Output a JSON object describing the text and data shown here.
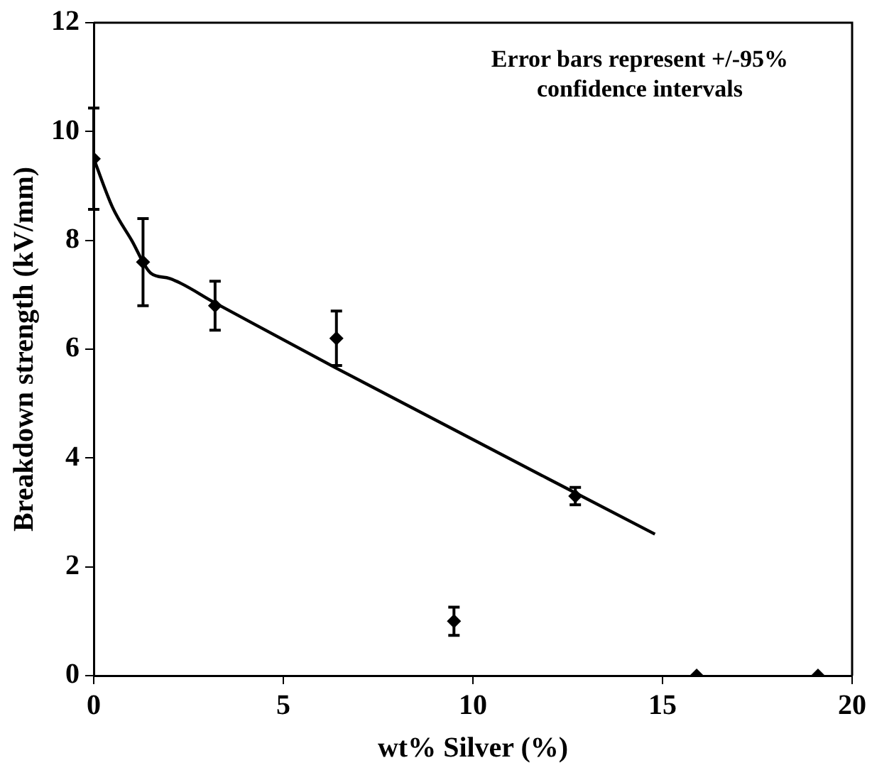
{
  "chart_data": {
    "type": "scatter",
    "xlabel": "wt% Silver (%)",
    "ylabel": "Breakdown strength (kV/mm)",
    "annotations": [
      "Error bars represent +/-95%\nconfidence intervals"
    ],
    "xlim": [
      0,
      20
    ],
    "xticks": [
      0,
      5,
      10,
      15,
      20
    ],
    "ylim": [
      0,
      12
    ],
    "yticks": [
      0,
      2,
      4,
      6,
      8,
      10,
      12
    ],
    "marker": "diamond",
    "series": [
      {
        "color": "#000000",
        "x": [
          0,
          1.3,
          3.2,
          6.4,
          12.7,
          9.5,
          15.9,
          19.1
        ],
        "values": [
          9.5,
          7.6,
          6.8,
          6.2,
          3.3,
          1.0,
          0,
          0
        ],
        "errors": [
          0.93,
          0.8,
          0.45,
          0.5,
          0.16,
          0.26,
          null,
          null
        ]
      },
      {
        "type": "line",
        "color": "#000000",
        "marker": "none",
        "x": [
          0,
          0.5,
          1,
          1.5,
          2,
          3.2,
          6.4,
          14.8
        ],
        "values": [
          9.5,
          8.6,
          8.0,
          7.4,
          7.3,
          6.85,
          5.65,
          2.6
        ]
      }
    ]
  }
}
